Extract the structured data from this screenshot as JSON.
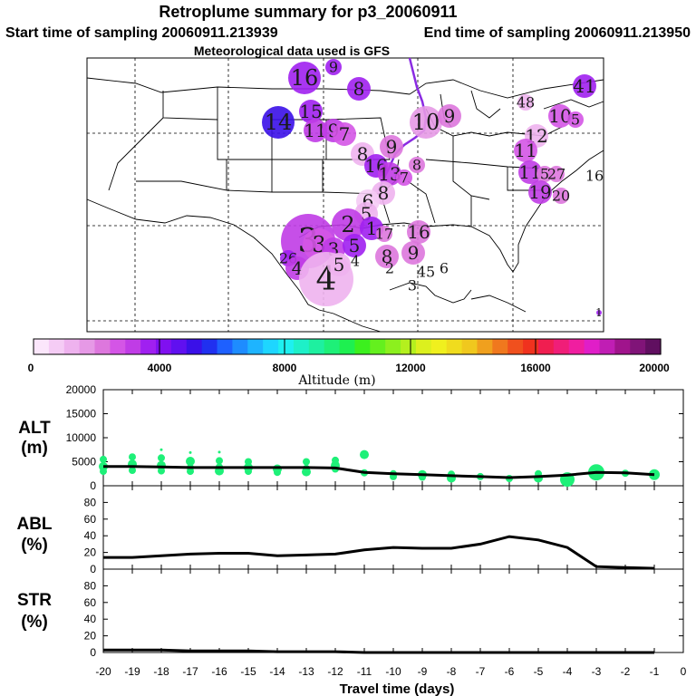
{
  "header": {
    "title": "Retroplume summary for p3_20060911",
    "start_label": "Start time of sampling 20060911.213939",
    "end_label": "End time of sampling 20060911.213950",
    "met_label": "Meteorological data used is GFS"
  },
  "colorbar": {
    "label": "Altitude (m)",
    "ticks": [
      "0",
      "4000",
      "8000",
      "12000",
      "16000",
      "20000"
    ],
    "range": [
      0,
      20000
    ],
    "colors": [
      "#fbe6fb",
      "#f5ccf5",
      "#eeb2ee",
      "#e699e6",
      "#dd77dd",
      "#d455e6",
      "#c03ce6",
      "#a020f0",
      "#8010f0",
      "#6010f0",
      "#3a10e8",
      "#2030f0",
      "#1e60ff",
      "#1e8cff",
      "#1eb4ff",
      "#1ed6ff",
      "#1ef0f0",
      "#1ef0c8",
      "#1ef0a0",
      "#1ef078",
      "#1ef050",
      "#3cf01e",
      "#64f01e",
      "#8cf01e",
      "#b4f01e",
      "#dcf01e",
      "#f0f01e",
      "#f0dc1e",
      "#f0c81e",
      "#f0a01e",
      "#f0781e",
      "#f0501e",
      "#f0321e",
      "#f01e50",
      "#f01e78",
      "#f01ea0",
      "#e01ec8",
      "#c01eb4",
      "#a0148c",
      "#801478",
      "#600f60"
    ]
  },
  "map": {
    "track_color": "#8a2be2",
    "bubbles": [
      {
        "label": "16",
        "color": "#a020f0",
        "size": "l"
      },
      {
        "label": "9",
        "color": "#a020f0",
        "size": "s"
      },
      {
        "label": "8",
        "color": "#a020f0",
        "size": "m"
      },
      {
        "label": "15",
        "color": "#a020f0",
        "size": "m"
      },
      {
        "label": "14",
        "color": "#3a10e8",
        "size": "l"
      },
      {
        "label": "11",
        "color": "#c03ce6",
        "size": "m"
      },
      {
        "label": "9",
        "color": "#c03ce6",
        "size": "m"
      },
      {
        "label": "7",
        "color": "#d455e6",
        "size": "m"
      },
      {
        "label": "10",
        "color": "#e699e6",
        "size": "l"
      },
      {
        "label": "9",
        "color": "#dd77dd",
        "size": "m"
      },
      {
        "label": "9",
        "color": "#dd77dd",
        "size": "m"
      },
      {
        "label": "8",
        "color": "#eeb2ee",
        "size": "m"
      },
      {
        "label": "8",
        "color": "#dd77dd",
        "size": "s"
      },
      {
        "label": "16",
        "color": "#a020f0",
        "size": "m"
      },
      {
        "label": "13",
        "color": "#c03ce6",
        "size": "m"
      },
      {
        "label": "7",
        "color": "#d455e6",
        "size": "s"
      },
      {
        "label": "8",
        "color": "#eeb2ee",
        "size": "m"
      },
      {
        "label": "6",
        "color": "#f5ccf5",
        "size": "m"
      },
      {
        "label": "5",
        "color": "#eeb2ee",
        "size": "m"
      },
      {
        "label": "2",
        "color": "#c03ce6",
        "size": "l"
      },
      {
        "label": "1",
        "color": "#a020f0",
        "size": "m"
      },
      {
        "label": "17",
        "color": "#dd77dd",
        "size": "s"
      },
      {
        "label": "16",
        "color": "#dd77dd",
        "size": "m"
      },
      {
        "label": "3",
        "color": "#c03ce6",
        "size": "xl"
      },
      {
        "label": "3",
        "color": "#d455e6",
        "size": "l"
      },
      {
        "label": "3",
        "color": "#c03ce6",
        "size": "m"
      },
      {
        "label": "5",
        "color": "#a020f0",
        "size": "m"
      },
      {
        "label": "9",
        "color": "#dd77dd",
        "size": "m"
      },
      {
        "label": "8",
        "color": "#dd77dd",
        "size": "m"
      },
      {
        "label": "2",
        "color": "#ffffff",
        "size": "s"
      },
      {
        "label": "26",
        "color": "#a020f0",
        "size": "s"
      },
      {
        "label": "4",
        "color": "#c03ce6",
        "size": "m"
      },
      {
        "label": "4",
        "color": "#eeb2ee",
        "size": "xl"
      },
      {
        "label": "5",
        "color": "#eeb2ee",
        "size": "m"
      },
      {
        "label": "4",
        "color": "#ffffff",
        "size": "s"
      },
      {
        "label": "45",
        "color": "#ffffff",
        "size": "s"
      },
      {
        "label": "6",
        "color": "#ffffff",
        "size": "s"
      },
      {
        "label": "3",
        "color": "#ffffff",
        "size": "s"
      },
      {
        "label": "41",
        "color": "#a020f0",
        "size": "m"
      },
      {
        "label": "48",
        "color": "#eeb2ee",
        "size": "s"
      },
      {
        "label": "10",
        "color": "#d455e6",
        "size": "m"
      },
      {
        "label": "5",
        "color": "#d455e6",
        "size": "s"
      },
      {
        "label": "12",
        "color": "#eeb2ee",
        "size": "m"
      },
      {
        "label": "11",
        "color": "#d455e6",
        "size": "m"
      },
      {
        "label": "11",
        "color": "#c03ce6",
        "size": "m"
      },
      {
        "label": "5",
        "color": "#dd77dd",
        "size": "s"
      },
      {
        "label": "27",
        "color": "#dd77dd",
        "size": "s"
      },
      {
        "label": "19",
        "color": "#c03ce6",
        "size": "m"
      },
      {
        "label": "20",
        "color": "#dd77dd",
        "size": "s"
      },
      {
        "label": "16",
        "color": "#ffffff",
        "size": "s"
      },
      {
        "label": "1",
        "color": "#a020f0",
        "size": "xs"
      }
    ]
  },
  "chart_data": [
    {
      "type": "line",
      "panel": "altitude",
      "ylabel": "ALT",
      "yunit": "(m)",
      "ylim": [
        0,
        20000
      ],
      "yticks": [
        "20000",
        "15000",
        "10000",
        "5000",
        "0"
      ],
      "x": [
        -20,
        -19,
        -18,
        -17,
        -16,
        -15,
        -14,
        -13,
        -12,
        -11,
        -10,
        -9,
        -8,
        -7,
        -6,
        -5,
        -4,
        -3,
        -2,
        -1
      ],
      "series": [
        {
          "name": "median altitude",
          "values": [
            4000,
            4000,
            3900,
            3800,
            3800,
            3800,
            3800,
            3800,
            3700,
            2800,
            2500,
            2300,
            2100,
            1900,
            1700,
            1900,
            2200,
            2800,
            2700,
            2300
          ]
        }
      ],
      "scatter_color": "#1ef078",
      "scatter": [
        [
          -20,
          4000
        ],
        [
          -20,
          3000
        ],
        [
          -20,
          5500
        ],
        [
          -19,
          4500
        ],
        [
          -19,
          3200
        ],
        [
          -19,
          6000
        ],
        [
          -18,
          4200
        ],
        [
          -18,
          3100
        ],
        [
          -18,
          5800
        ],
        [
          -18,
          7500
        ],
        [
          -17,
          3800
        ],
        [
          -17,
          3000
        ],
        [
          -17,
          5100
        ],
        [
          -17,
          6900
        ],
        [
          -16,
          3900
        ],
        [
          -16,
          3100
        ],
        [
          -16,
          5200
        ],
        [
          -16,
          7000
        ],
        [
          -15,
          3800
        ],
        [
          -15,
          3000
        ],
        [
          -15,
          5000
        ],
        [
          -14,
          3500
        ],
        [
          -14,
          2800
        ],
        [
          -13,
          3600
        ],
        [
          -13,
          2900
        ],
        [
          -13,
          5000
        ],
        [
          -12,
          3500
        ],
        [
          -12,
          4200
        ],
        [
          -12,
          5300
        ],
        [
          -11,
          2700
        ],
        [
          -11,
          6500
        ],
        [
          -10,
          2500
        ],
        [
          -10,
          1900
        ],
        [
          -9,
          2300
        ],
        [
          -9,
          1800
        ],
        [
          -8,
          2400
        ],
        [
          -8,
          1600
        ],
        [
          -7,
          1900
        ],
        [
          -6,
          1500
        ],
        [
          -5,
          1600
        ],
        [
          -5,
          2500
        ],
        [
          -4,
          1800
        ],
        [
          -4,
          1200
        ],
        [
          -3,
          2800
        ],
        [
          -2,
          2600
        ],
        [
          -1,
          2300
        ]
      ]
    },
    {
      "type": "line",
      "panel": "abl",
      "ylabel": "ABL",
      "yunit": "(%)",
      "ylim": [
        0,
        100
      ],
      "yticks": [
        "80",
        "60",
        "40",
        "20",
        "0"
      ],
      "x": [
        -20,
        -19,
        -18,
        -17,
        -16,
        -15,
        -14,
        -13,
        -12,
        -11,
        -10,
        -9,
        -8,
        -7,
        -6,
        -5,
        -4,
        -3,
        -2,
        -1
      ],
      "series": [
        {
          "name": "fraction in ABL",
          "values": [
            14,
            14,
            16,
            18,
            19,
            19,
            16,
            17,
            18,
            23,
            26,
            25,
            25,
            30,
            39,
            35,
            26,
            3,
            2,
            1
          ]
        }
      ]
    },
    {
      "type": "line",
      "panel": "str",
      "ylabel": "STR",
      "yunit": "(%)",
      "ylim": [
        0,
        100
      ],
      "yticks": [
        "80",
        "60",
        "40",
        "20",
        "0"
      ],
      "x": [
        -20,
        -19,
        -18,
        -17,
        -16,
        -15,
        -14,
        -13,
        -12,
        -11,
        -10,
        -9,
        -8,
        -7,
        -6,
        -5,
        -4,
        -3,
        -2,
        -1
      ],
      "series": [
        {
          "name": "fraction in stratosphere",
          "values": [
            3,
            3,
            3,
            2,
            2,
            2,
            1,
            1,
            1,
            0,
            0,
            0,
            0,
            0,
            0,
            0,
            0,
            0,
            0,
            0
          ]
        }
      ],
      "xlabel": "Travel time (days)",
      "xticks": [
        "-20",
        "-19",
        "-18",
        "-17",
        "-16",
        "-15",
        "-14",
        "-13",
        "-12",
        "-11",
        "-10",
        "-9",
        "-8",
        "-7",
        "-6",
        "-5",
        "-4",
        "-3",
        "-2",
        "-1",
        "0"
      ]
    }
  ]
}
